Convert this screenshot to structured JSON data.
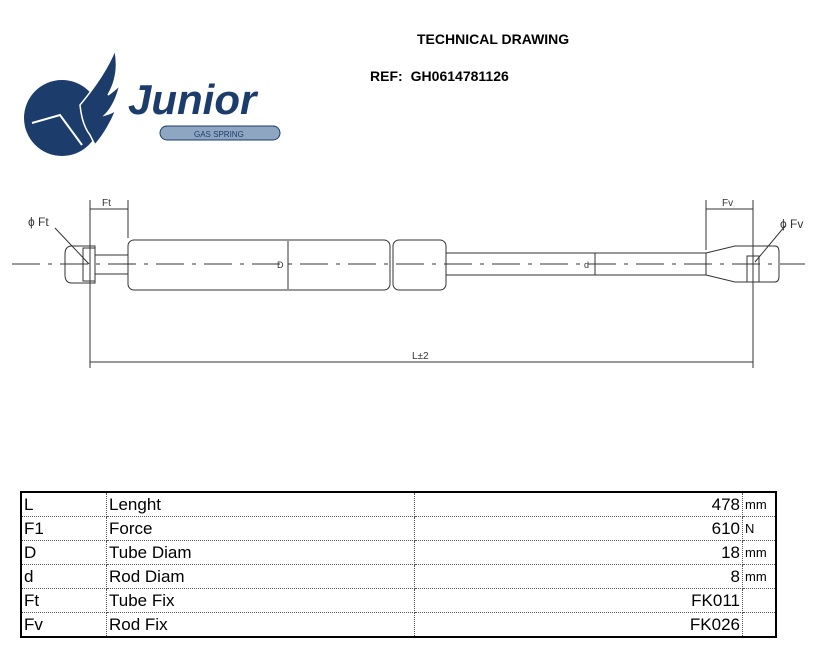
{
  "header": {
    "title": "TECHNICAL DRAWING",
    "ref_label": "REF:",
    "ref_value": "GH0614781126"
  },
  "logo": {
    "brand": "Junior",
    "tagline": "GAS SPRING",
    "color": "#1c3d6b"
  },
  "drawing": {
    "labels": {
      "ft_dim": "Ft",
      "fv_dim": "Fv",
      "phi_ft": "ϕ Ft",
      "phi_fv": "ϕ Fv",
      "tube_diam": "D",
      "rod_diam": "d",
      "length": "L±2"
    }
  },
  "specs": [
    {
      "code": "L",
      "name": "Lenght",
      "value": "478",
      "unit": "mm"
    },
    {
      "code": "F1",
      "name": "Force",
      "value": "610",
      "unit": "N"
    },
    {
      "code": "D",
      "name": "Tube Diam",
      "value": "18",
      "unit": "mm"
    },
    {
      "code": "d",
      "name": "Rod Diam",
      "value": "8",
      "unit": "mm"
    },
    {
      "code": "Ft",
      "name": "Tube Fix",
      "value": "FK011",
      "unit": ""
    },
    {
      "code": "Fv",
      "name": "Rod Fix",
      "value": "FK026",
      "unit": ""
    }
  ]
}
